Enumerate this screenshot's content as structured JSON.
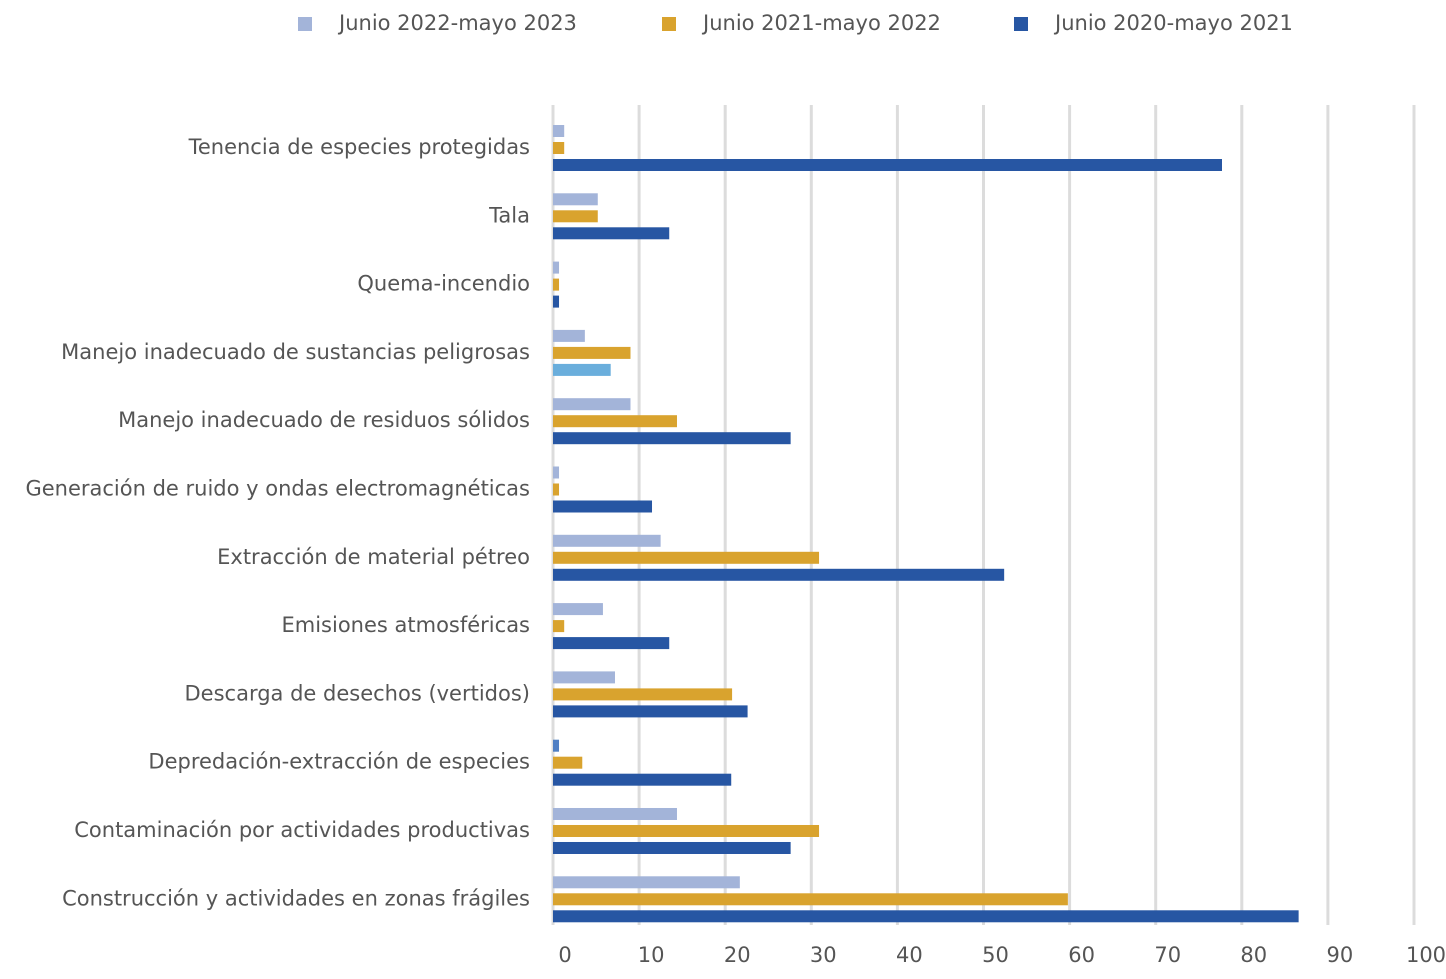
{
  "chart_data": {
    "type": "hbar",
    "categories": [
      "Tenencia de especies protegidas",
      "Tala",
      "Quema-incendio",
      "Manejo inadecuado de sustancias peligrosas",
      "Manejo inadecuado de residuos sólidos",
      "Generación de ruido y ondas electromagnéticas",
      "Extracción de material pétreo",
      "Emisiones atmosféricas",
      "Descarga de desechos (vertidos)",
      "Depredación-extracción de especies",
      "Contaminación por actividades productivas",
      "Construcción y actividades en zonas frágiles"
    ],
    "series": [
      {
        "name": "Junio 2022-mayo 2023",
        "color": "#a3b4d9",
        "values": [
          1.3,
          5.2,
          0.7,
          3.7,
          9,
          0.7,
          12.5,
          5.8,
          7.2,
          0.7,
          14.4,
          21.7
        ],
        "point_colors": {
          "9": "#4f7fc4"
        }
      },
      {
        "name": "Junio 2021-mayo 2022",
        "color": "#d9a32e",
        "values": [
          1.3,
          5.2,
          0.7,
          9,
          14.4,
          0.7,
          30.9,
          1.3,
          20.8,
          3.4,
          30.9,
          59.8
        ]
      },
      {
        "name": "Junio 2020-mayo 2021",
        "color": "#2756a3",
        "values": [
          77.7,
          13.5,
          0.7,
          6.7,
          27.6,
          11.5,
          52.4,
          13.5,
          22.6,
          20.7,
          27.6,
          86.6
        ],
        "point_colors": {
          "3": "#6aaedc"
        }
      }
    ],
    "xlim": [
      0,
      100
    ],
    "xticks": [
      0,
      10,
      20,
      30,
      40,
      50,
      60,
      70,
      80,
      90,
      100
    ],
    "grid": true
  }
}
